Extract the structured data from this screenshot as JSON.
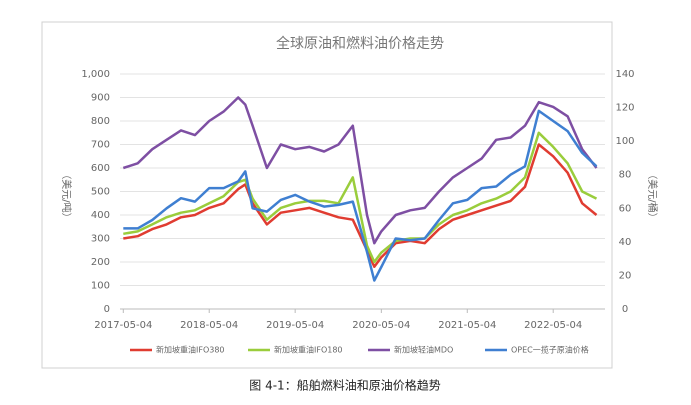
{
  "chart_data": {
    "type": "line",
    "title": "全球原油和燃料油价格走势",
    "caption": "图 4-1：船舶燃料油和原油价格趋势",
    "ylabel": "（美元/吨）",
    "y2label": "（美元/桶）",
    "x": [
      "2017-05-04",
      "2017-07-04",
      "2017-09-04",
      "2017-11-04",
      "2018-01-04",
      "2018-03-04",
      "2018-05-04",
      "2018-07-04",
      "2018-09-04",
      "2018-10-04",
      "2018-11-04",
      "2019-01-04",
      "2019-03-04",
      "2019-05-04",
      "2019-07-04",
      "2019-09-04",
      "2019-11-04",
      "2020-01-04",
      "2020-03-04",
      "2020-04-04",
      "2020-05-04",
      "2020-07-04",
      "2020-09-04",
      "2020-11-04",
      "2021-01-04",
      "2021-03-04",
      "2021-05-04",
      "2021-07-04",
      "2021-09-04",
      "2021-11-04",
      "2022-01-04",
      "2022-03-04",
      "2022-05-04",
      "2022-07-04",
      "2022-09-04",
      "2022-11-04"
    ],
    "xlim": [
      "2017-04-20",
      "2022-12-10"
    ],
    "xticks": [
      "2017-05-04",
      "2018-05-04",
      "2019-05-04",
      "2020-05-04",
      "2021-05-04",
      "2022-05-04"
    ],
    "ylim": [
      0,
      1000
    ],
    "yticks": [
      0,
      100,
      200,
      300,
      400,
      500,
      600,
      700,
      800,
      900,
      {
        "value": 1000,
        "label": "1,000"
      }
    ],
    "y2lim": [
      0,
      140
    ],
    "y2ticks": [
      0,
      20,
      40,
      60,
      80,
      100,
      120,
      140
    ],
    "series": [
      {
        "name": "新加坡重油IFO380",
        "color": "#e03c31",
        "values": [
          300,
          310,
          340,
          360,
          390,
          400,
          430,
          450,
          510,
          530,
          450,
          360,
          410,
          420,
          430,
          410,
          390,
          380,
          250,
          180,
          220,
          280,
          290,
          280,
          340,
          380,
          400,
          420,
          440,
          460,
          520,
          700,
          650,
          580,
          450,
          400
        ]
      },
      {
        "name": "新加坡重油IFO180",
        "color": "#9acd3c",
        "values": [
          320,
          330,
          360,
          390,
          410,
          420,
          450,
          480,
          540,
          550,
          470,
          380,
          430,
          450,
          460,
          460,
          450,
          560,
          270,
          200,
          240,
          290,
          300,
          300,
          360,
          400,
          420,
          450,
          470,
          500,
          560,
          750,
          690,
          620,
          500,
          470
        ]
      },
      {
        "name": "新加坡轻油MDO",
        "color": "#7e4fa3",
        "values": [
          600,
          620,
          680,
          720,
          760,
          740,
          800,
          840,
          900,
          870,
          780,
          600,
          700,
          680,
          690,
          670,
          700,
          780,
          400,
          280,
          330,
          400,
          420,
          430,
          500,
          560,
          600,
          640,
          720,
          730,
          780,
          880,
          860,
          820,
          680,
          600
        ]
      },
      {
        "name": "OPEC一揽子原油价格",
        "color": "#3f7fd1",
        "axis": "y2",
        "values": [
          48,
          48,
          53,
          60,
          66,
          64,
          72,
          72,
          76,
          82,
          60,
          58,
          65,
          68,
          64,
          61,
          62,
          64,
          34,
          17,
          25,
          42,
          41,
          42,
          53,
          63,
          65,
          72,
          73,
          80,
          85,
          118,
          112,
          106,
          93,
          85
        ]
      }
    ]
  }
}
